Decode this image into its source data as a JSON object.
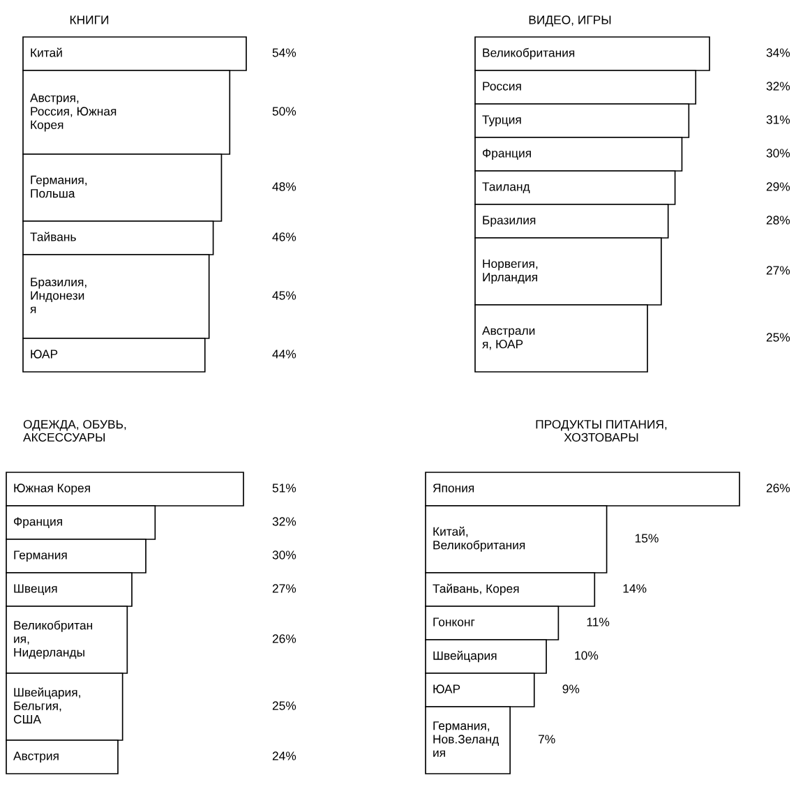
{
  "chart_data": [
    {
      "type": "bar",
      "orientation": "horizontal",
      "title": "КНИГИ",
      "categories": [
        "Китай",
        "Австрия,\nРоссия, Южная\nКорея",
        "Германия,\nПольша",
        "Тайвань",
        "Бразилия,\nИндонези\nя",
        "ЮАР"
      ],
      "values": [
        54,
        50,
        48,
        46,
        45,
        44
      ],
      "value_labels": [
        "54%",
        "50%",
        "48%",
        "46%",
        "45%",
        "44%"
      ]
    },
    {
      "type": "bar",
      "orientation": "horizontal",
      "title": "ВИДЕО, ИГРЫ",
      "categories": [
        "Великобритания",
        "Россия",
        "Турция",
        "Франция",
        "Таиланд",
        "Бразилия",
        "Норвегия,\nИрландия",
        "Австрали\nя, ЮАР"
      ],
      "values": [
        34,
        32,
        31,
        30,
        29,
        28,
        27,
        25
      ],
      "value_labels": [
        "34%",
        "32%",
        "31%",
        "30%",
        "29%",
        "28%",
        "27%",
        "25%"
      ]
    },
    {
      "type": "bar",
      "orientation": "horizontal",
      "title": "ОДЕЖДА, ОБУВЬ,\nАКСЕССУАРЫ",
      "categories": [
        "Южная Корея",
        "Франция",
        "Германия",
        "Швеция",
        "Великобритан\nия,\nНидерланды",
        "Швейцария,\nБельгия,\nСША",
        "Австрия"
      ],
      "values": [
        51,
        32,
        30,
        27,
        26,
        25,
        24
      ],
      "value_labels": [
        "51%",
        "32%",
        "30%",
        "27%",
        "26%",
        "25%",
        "24%"
      ]
    },
    {
      "type": "bar",
      "orientation": "horizontal",
      "title": "ПРОДУКТЫ ПИТАНИЯ,\nХОЗТОВАРЫ",
      "categories": [
        "Япония",
        "Китай,\nВеликобритания",
        "Тайвань, Корея",
        "Гонконг",
        "Швейцария",
        "ЮАР",
        "Германия,\nНов.Зеланд\nия"
      ],
      "values": [
        26,
        15,
        14,
        11,
        10,
        9,
        7
      ],
      "value_labels": [
        "26%",
        "15%",
        "14%",
        "11%",
        "10%",
        "9%",
        "7%"
      ]
    }
  ]
}
